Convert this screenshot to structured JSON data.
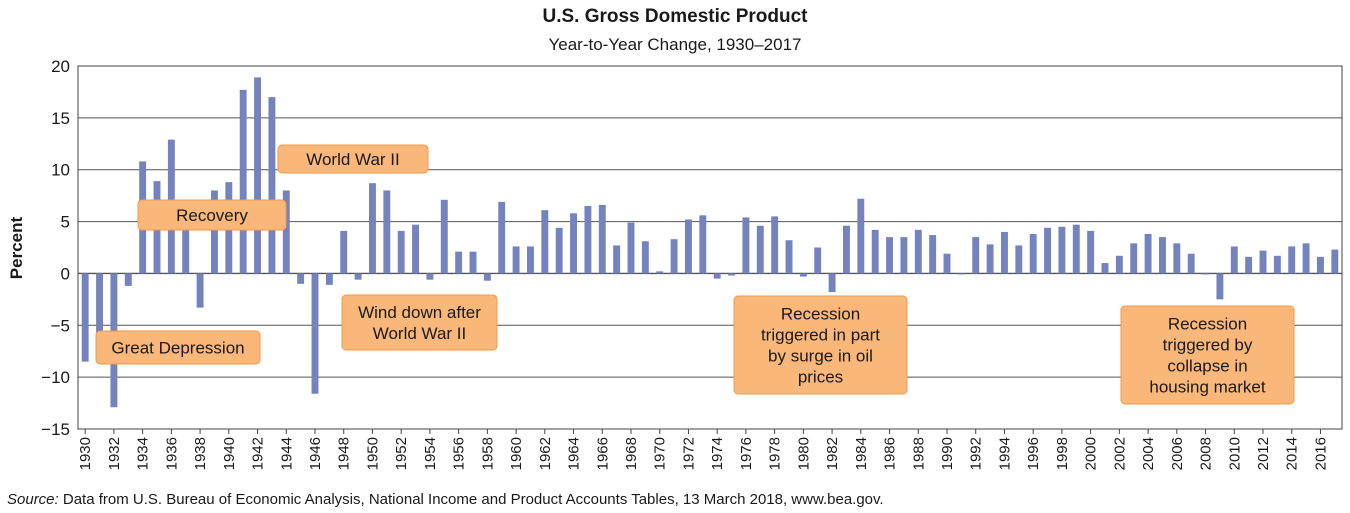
{
  "chart_data": {
    "type": "bar",
    "title": "U.S. Gross Domestic Product",
    "subtitle": "Year-to-Year Change, 1930–2017",
    "ylabel": "Percent",
    "xlabel": "",
    "ylim": [
      -15,
      20
    ],
    "yticks": [
      20,
      15,
      10,
      5,
      0,
      -5,
      -10,
      -15
    ],
    "ytick_labels": [
      "20",
      "15",
      "10",
      "5",
      "0",
      "−5",
      "−10",
      "−15"
    ],
    "grid": "horizontal",
    "bar_color": "#7482bd",
    "x": [
      1930,
      1931,
      1932,
      1933,
      1934,
      1935,
      1936,
      1937,
      1938,
      1939,
      1940,
      1941,
      1942,
      1943,
      1944,
      1945,
      1946,
      1947,
      1948,
      1949,
      1950,
      1951,
      1952,
      1953,
      1954,
      1955,
      1956,
      1957,
      1958,
      1959,
      1960,
      1961,
      1962,
      1963,
      1964,
      1965,
      1966,
      1967,
      1968,
      1969,
      1970,
      1971,
      1972,
      1973,
      1974,
      1975,
      1976,
      1977,
      1978,
      1979,
      1980,
      1981,
      1982,
      1983,
      1984,
      1985,
      1986,
      1987,
      1988,
      1989,
      1990,
      1991,
      1992,
      1993,
      1994,
      1995,
      1996,
      1997,
      1998,
      1999,
      2000,
      2001,
      2002,
      2003,
      2004,
      2005,
      2006,
      2007,
      2008,
      2009,
      2010,
      2011,
      2012,
      2013,
      2014,
      2015,
      2016,
      2017
    ],
    "values": [
      -8.5,
      -6.4,
      -12.9,
      -1.2,
      10.8,
      8.9,
      12.9,
      5.1,
      -3.3,
      8.0,
      8.8,
      17.7,
      18.9,
      17.0,
      8.0,
      -1.0,
      -11.6,
      -1.1,
      4.1,
      -0.6,
      8.7,
      8.0,
      4.1,
      4.7,
      -0.6,
      7.1,
      2.1,
      2.1,
      -0.7,
      6.9,
      2.6,
      2.6,
      6.1,
      4.4,
      5.8,
      6.5,
      6.6,
      2.7,
      4.9,
      3.1,
      0.2,
      3.3,
      5.2,
      5.6,
      -0.5,
      -0.2,
      5.4,
      4.6,
      5.5,
      3.2,
      -0.3,
      2.5,
      -1.8,
      4.6,
      7.2,
      4.2,
      3.5,
      3.5,
      4.2,
      3.7,
      1.9,
      -0.1,
      3.5,
      2.8,
      4.0,
      2.7,
      3.8,
      4.4,
      4.5,
      4.7,
      4.1,
      1.0,
      1.7,
      2.9,
      3.8,
      3.5,
      2.9,
      1.9,
      -0.1,
      -2.5,
      2.6,
      1.6,
      2.2,
      1.7,
      2.6,
      2.9,
      1.6,
      2.3
    ],
    "xtick_labels": [
      "1930",
      "1932",
      "1934",
      "1936",
      "1938",
      "1940",
      "1942",
      "1944",
      "1946",
      "1948",
      "1950",
      "1952",
      "1954",
      "1956",
      "1958",
      "1960",
      "1962",
      "1964",
      "1966",
      "1968",
      "1970",
      "1972",
      "1974",
      "1976",
      "1978",
      "1980",
      "1982",
      "1984",
      "1986",
      "1988",
      "1990",
      "1992",
      "1994",
      "1996",
      "1998",
      "2000",
      "2002",
      "2004",
      "2006",
      "2008",
      "2010",
      "2012",
      "2014",
      "2016"
    ],
    "annotations": [
      {
        "lines": [
          "Great Depression"
        ]
      },
      {
        "lines": [
          "Recovery"
        ]
      },
      {
        "lines": [
          "World War II"
        ]
      },
      {
        "lines": [
          "Wind down after",
          "World War II"
        ]
      },
      {
        "lines": [
          "Recession",
          "triggered in part",
          "by surge in oil",
          "prices"
        ]
      },
      {
        "lines": [
          "Recession",
          "triggered by",
          "collapse in",
          "housing market"
        ]
      }
    ],
    "annotation_fill": "#f9b77a"
  },
  "source": {
    "label": "Source:",
    "text": " Data from U.S. Bureau of Economic Analysis, National Income and Product Accounts Tables, 13 March 2018, www.bea.gov."
  }
}
